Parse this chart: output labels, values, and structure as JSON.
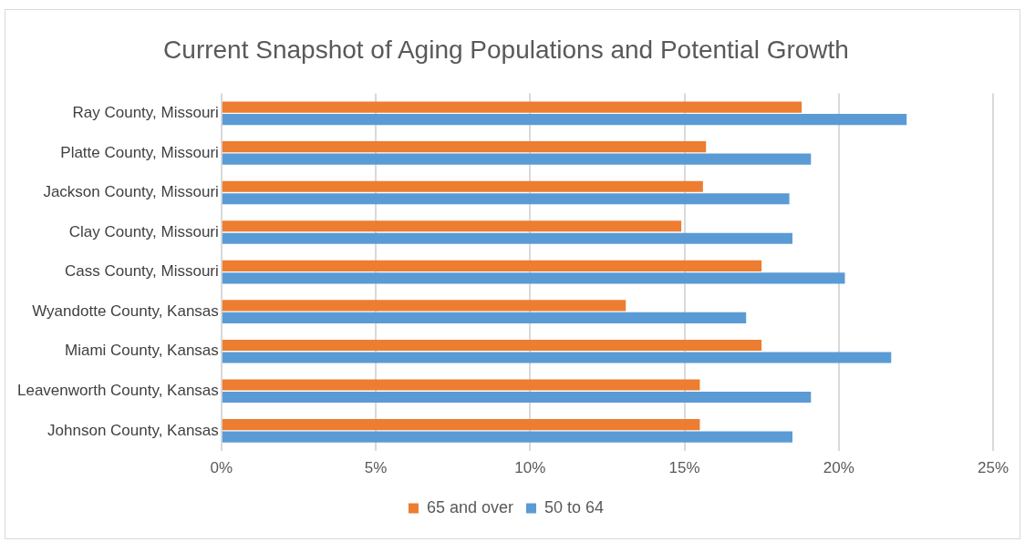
{
  "chart_data": {
    "type": "bar",
    "orientation": "horizontal",
    "title": "Current Snapshot of Aging Populations and Potential Growth",
    "categories": [
      "Ray County, Missouri",
      "Platte County, Missouri",
      "Jackson County, Missouri",
      "Clay County, Missouri",
      "Cass County, Missouri",
      "Wyandotte County, Kansas",
      "Miami County, Kansas",
      "Leavenworth County, Kansas",
      "Johnson County, Kansas"
    ],
    "series": [
      {
        "name": "65 and over",
        "color": "#ed7d31",
        "values": [
          18.8,
          15.7,
          15.6,
          14.9,
          17.5,
          13.1,
          17.5,
          15.5,
          15.5
        ]
      },
      {
        "name": "50 to 64",
        "color": "#5b9bd5",
        "values": [
          22.2,
          19.1,
          18.4,
          18.5,
          20.2,
          17.0,
          21.7,
          19.1,
          18.5
        ]
      }
    ],
    "xlim": [
      0,
      25
    ],
    "xticks": [
      {
        "value": 0,
        "label": "0%"
      },
      {
        "value": 5,
        "label": "5%"
      },
      {
        "value": 10,
        "label": "10%"
      },
      {
        "value": 15,
        "label": "15%"
      },
      {
        "value": 20,
        "label": "20%"
      },
      {
        "value": 25,
        "label": "25%"
      }
    ],
    "grid": "x",
    "legend": "bottom"
  }
}
